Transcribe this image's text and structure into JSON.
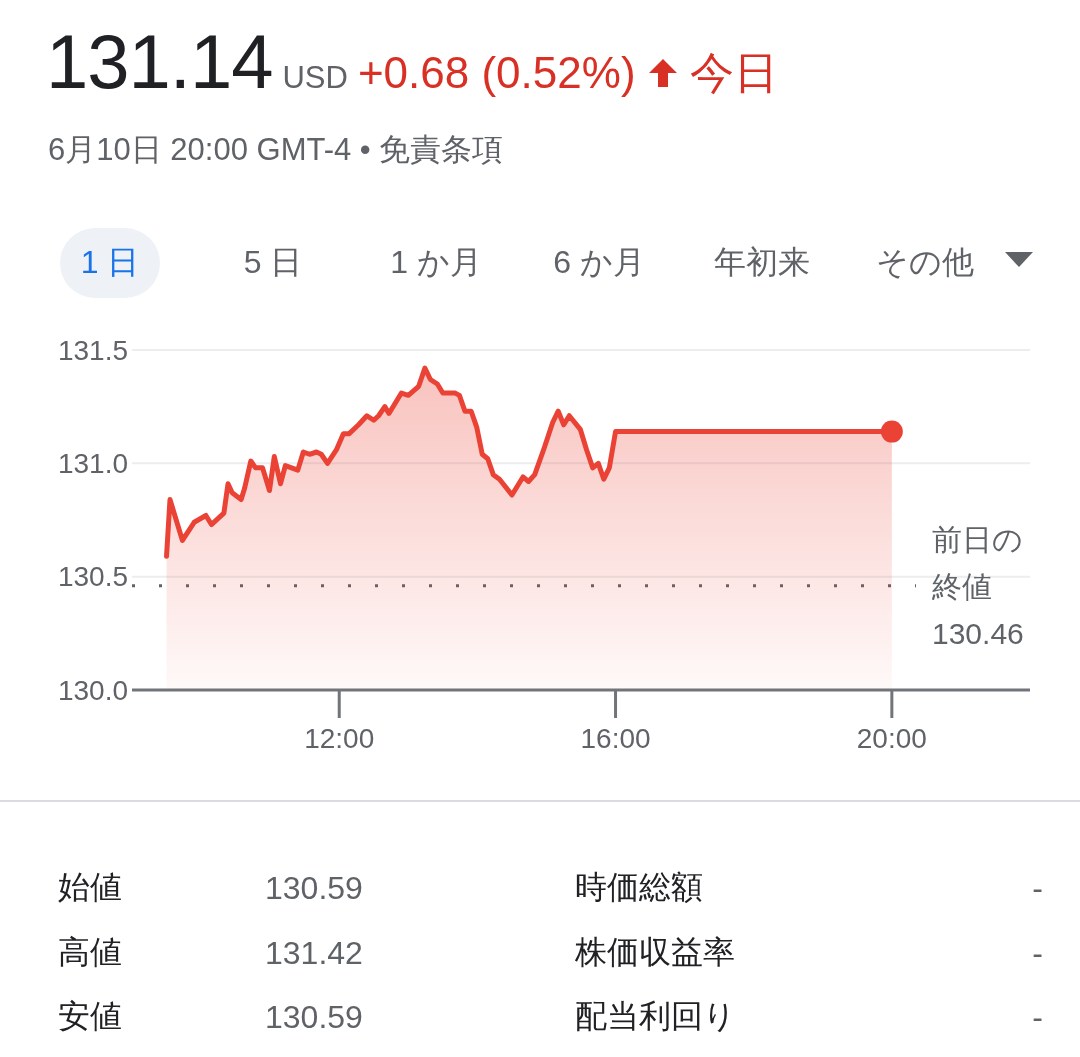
{
  "chart_data": [
    {
      "type": "other",
      "title": "131.14",
      "subtitle": "6月10日 20:00 GMT-4 • 免責条項",
      "annotations": [
        "USD",
        "+0.68 (0.52%)",
        "今日"
      ]
    },
    {
      "type": "area",
      "annotations": [
        "1 日",
        "5 日",
        "1 か月",
        "6 か月",
        "年初来",
        "その他"
      ],
      "series": [
        {
          "color": "#ea4335",
          "x": [
            9.5,
            9.55,
            9.73,
            9.9,
            10.07,
            10.15,
            10.33,
            10.39,
            10.45,
            10.58,
            10.63,
            10.72,
            10.79,
            10.89,
            10.99,
            11.06,
            11.15,
            11.22,
            11.4,
            11.48,
            11.57,
            11.67,
            11.74,
            11.83,
            11.96,
            12.06,
            12.14,
            12.28,
            12.4,
            12.5,
            12.57,
            12.66,
            12.72,
            12.9,
            13.0,
            13.15,
            13.24,
            13.32,
            13.42,
            13.5,
            13.68,
            13.74,
            13.82,
            13.91,
            13.99,
            14.07,
            14.15,
            14.23,
            14.32,
            14.5,
            14.66,
            14.74,
            14.83,
            14.97,
            15.09,
            15.17,
            15.25,
            15.33,
            15.49,
            15.58,
            15.67,
            15.75,
            15.83,
            15.91,
            16.0,
            20.0
          ],
          "values": [
            130.59,
            130.84,
            130.66,
            130.74,
            130.77,
            130.73,
            130.78,
            130.91,
            130.87,
            130.84,
            130.89,
            131.01,
            130.98,
            130.98,
            130.88,
            131.03,
            130.91,
            130.99,
            130.97,
            131.05,
            131.04,
            131.05,
            131.04,
            131.0,
            131.06,
            131.13,
            131.13,
            131.17,
            131.21,
            131.19,
            131.21,
            131.25,
            131.22,
            131.31,
            131.3,
            131.34,
            131.42,
            131.37,
            131.35,
            131.31,
            131.31,
            131.3,
            131.23,
            131.23,
            131.16,
            131.04,
            131.02,
            130.95,
            130.93,
            130.86,
            130.94,
            130.92,
            130.95,
            131.07,
            131.18,
            131.23,
            131.17,
            131.21,
            131.15,
            131.06,
            130.98,
            131.0,
            130.93,
            130.98,
            131.14,
            131.14
          ]
        },
        {
          "type": "scatter",
          "marker": "circle",
          "color": "#ea4335",
          "x": [
            20.0
          ],
          "values": [
            131.14
          ]
        }
      ],
      "xlim": [
        9,
        22
      ],
      "xticks": [
        {
          "value": 12,
          "label": "12:00"
        },
        {
          "value": 16,
          "label": "16:00"
        },
        {
          "value": 20,
          "label": "20:00"
        }
      ],
      "ylim": [
        130.0,
        131.5
      ],
      "yticks": [
        {
          "value": 130.0,
          "label": "130.0"
        },
        {
          "value": 130.5,
          "label": "130.5"
        },
        {
          "value": 131.0,
          "label": "131.0"
        },
        {
          "value": 131.5,
          "label": "131.5"
        }
      ],
      "grid": "y",
      "ref_lines": [
        {
          "axis": "y",
          "value": 130.46,
          "label": "前日の終値 130.46",
          "line_style": "dotted",
          "color": "#5f6368"
        }
      ]
    },
    {
      "type": "other",
      "annotations": [
        "始値",
        "130.59",
        "時価総額",
        "-",
        "高値",
        "131.42",
        "株価収益率",
        "-",
        "安値",
        "130.59",
        "配当利回り",
        "-"
      ]
    }
  ]
}
